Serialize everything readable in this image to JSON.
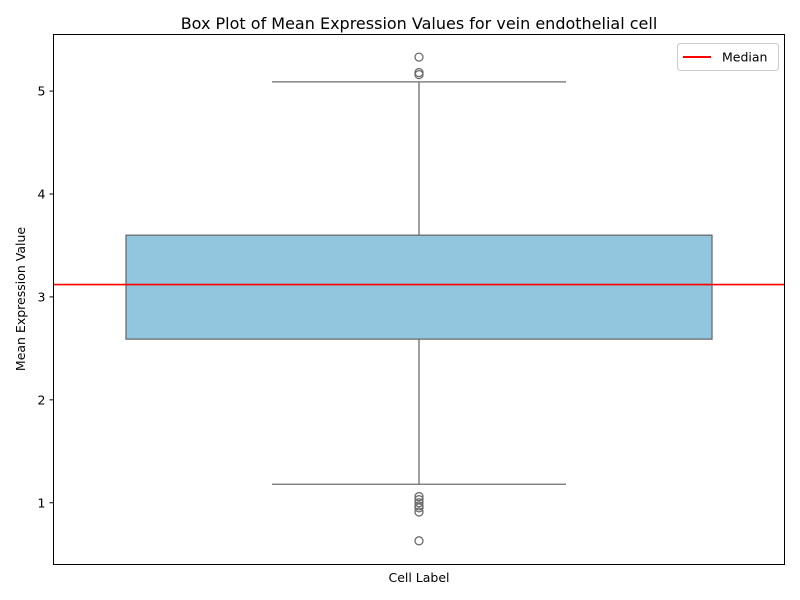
{
  "chart_data": {
    "type": "box",
    "title": "Box Plot of Mean Expression Values for vein endothelial cell",
    "xlabel": "Cell Label",
    "ylabel": "Mean Expression Value",
    "ylim": [
      0.4,
      5.55
    ],
    "yticks": [
      1,
      2,
      3,
      4,
      5
    ],
    "ytick_labels": [
      "1",
      "2",
      "3",
      "4",
      "5"
    ],
    "grid": false,
    "box": {
      "q1": 2.59,
      "median": 3.12,
      "q3": 3.6,
      "whisker_low": 1.18,
      "whisker_high": 5.09,
      "fill_color": "#92c6de",
      "edge_color": "#6b6b6b"
    },
    "outliers": [
      5.33,
      5.18,
      5.16,
      1.06,
      1.03,
      1.0,
      0.97,
      0.95,
      0.91,
      0.63
    ],
    "median_line": {
      "value": 3.12,
      "color": "#ff0000"
    },
    "legend": {
      "position": "top-right",
      "entries": [
        {
          "label": "Median",
          "color": "#ff0000"
        }
      ]
    }
  }
}
